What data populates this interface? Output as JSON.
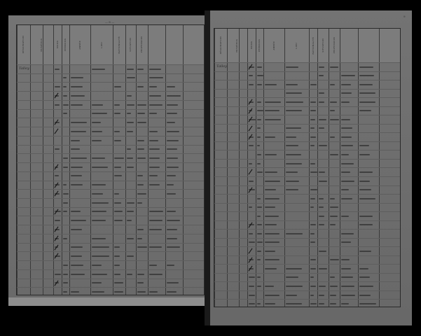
{
  "document": {
    "left_page": {
      "page_number": "— 8 —",
      "margin_note": "Talloy",
      "headers": [
        "DÉSIGNATION",
        "NUMÉROS",
        "NOMS",
        "PRÉNOMS",
        "ANNÉE",
        "LIEU",
        "NATIONALITÉ",
        "SITUATION",
        "PROFESSION"
      ]
    },
    "right_page": {
      "page_number": "9",
      "margin_note": "Talloy",
      "headers": [
        "DÉSIGNATION",
        "NUMÉROS",
        "NOMS",
        "PRÉNOMS",
        "ANNÉE",
        "LIEU",
        "NATIONALITÉ",
        "SITUATION",
        "PROFESSION"
      ]
    }
  }
}
